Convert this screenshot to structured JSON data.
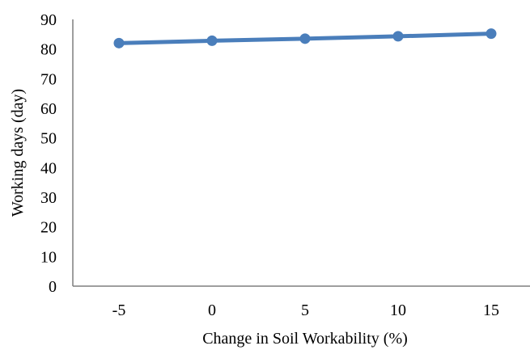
{
  "chart_data": {
    "type": "line",
    "title": "",
    "xlabel": "Change in Soil Workability (%)",
    "ylabel": "Working days (day)",
    "categories": [
      "-5",
      "0",
      "5",
      "10",
      "15"
    ],
    "series": [
      {
        "values": [
          82,
          82.8,
          83.5,
          84.3,
          85.2
        ]
      }
    ],
    "ylim": [
      0,
      90
    ],
    "yticks": [
      "0",
      "10",
      "20",
      "30",
      "40",
      "50",
      "60",
      "70",
      "80",
      "90"
    ],
    "grid": false,
    "legend": "none",
    "colors": {
      "series": "#4a7ebb",
      "axis": "#7f7f7f"
    }
  }
}
